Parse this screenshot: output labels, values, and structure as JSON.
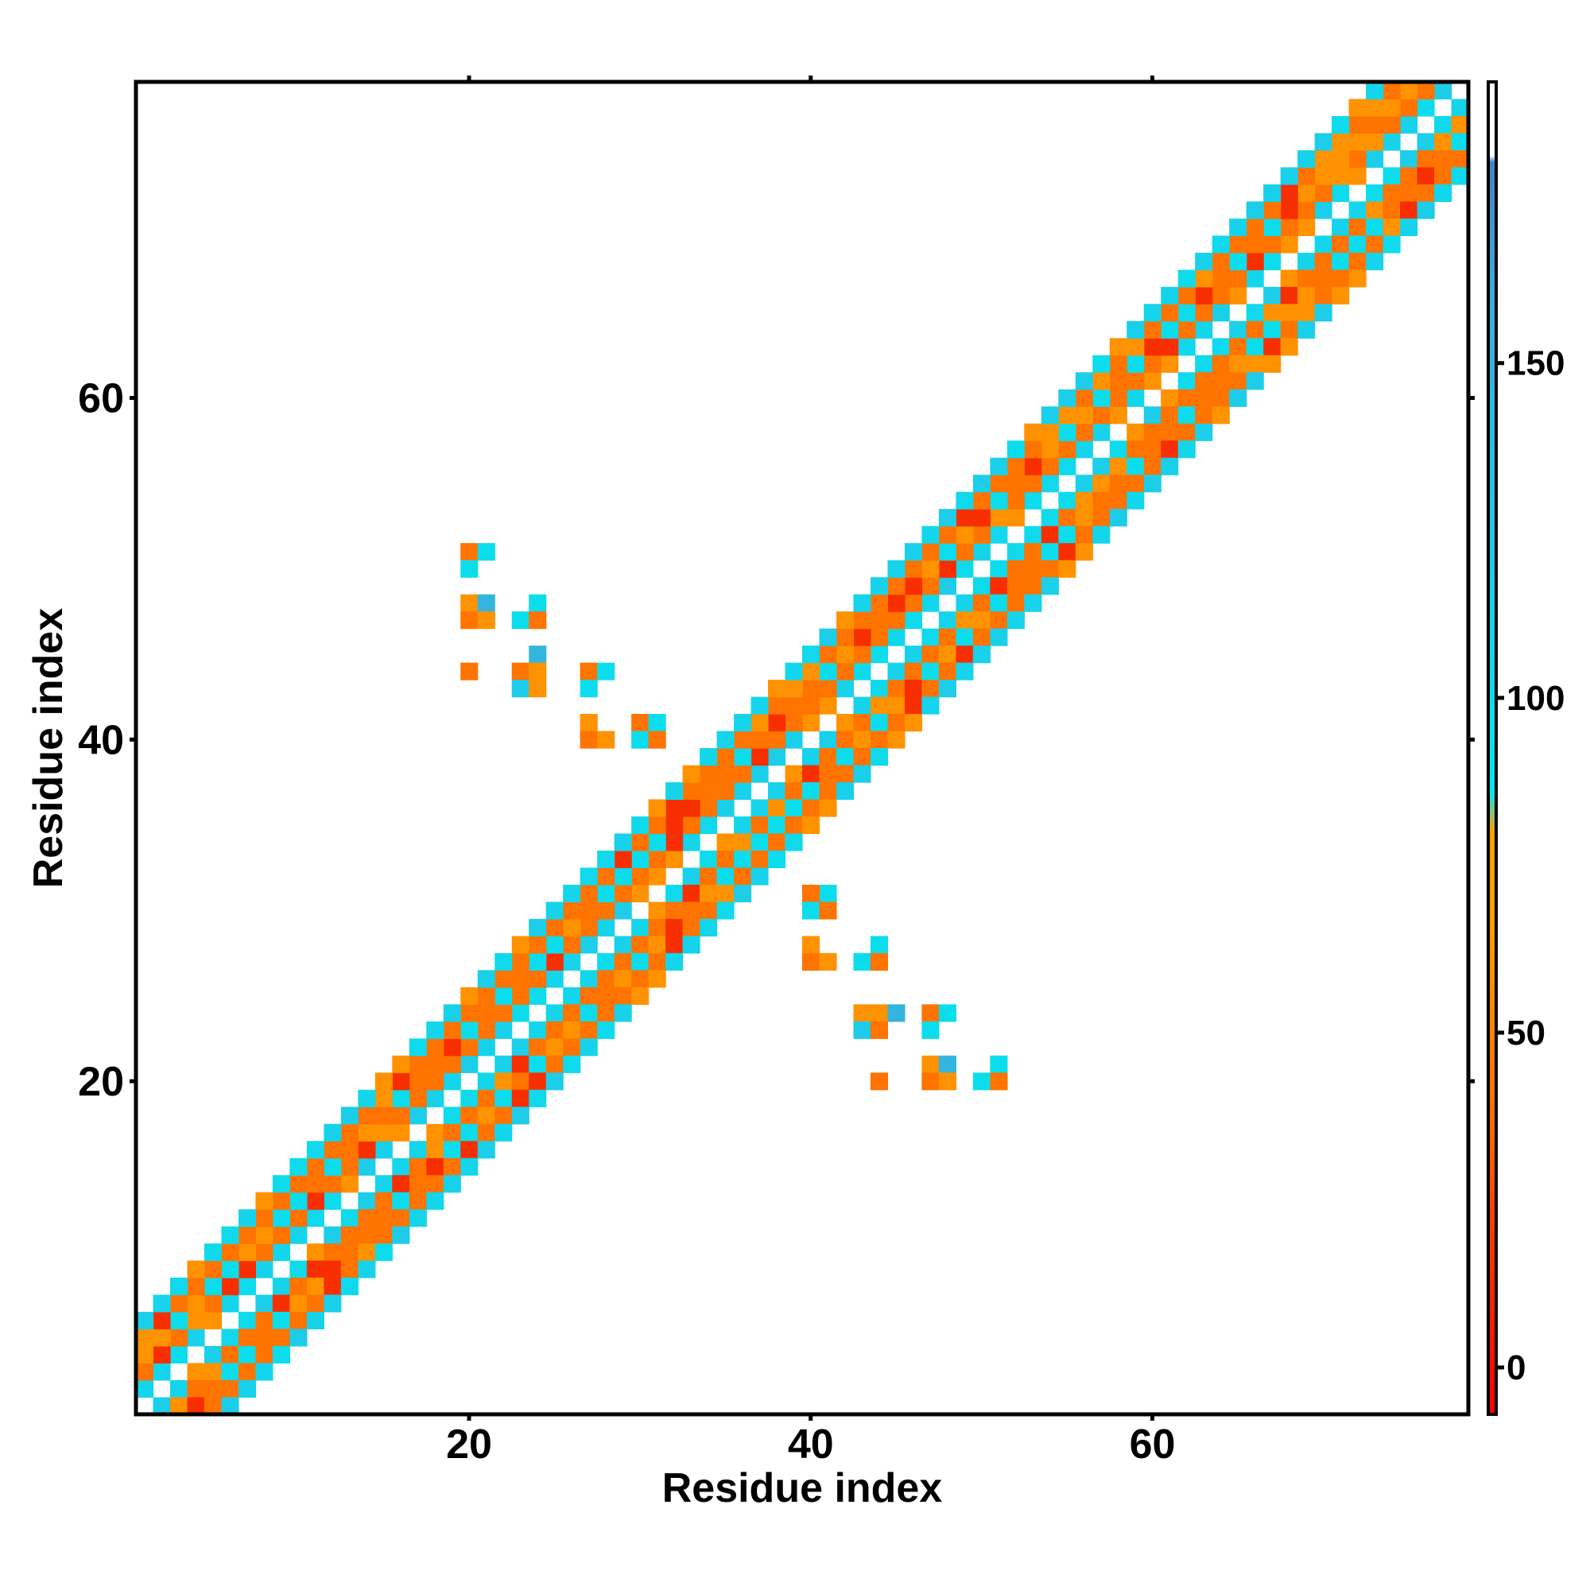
{
  "chart_data": {
    "type": "heatmap",
    "title": "",
    "xlabel": "Residue index",
    "ylabel": "Residue index",
    "xlim": [
      0.5,
      78.5
    ],
    "ylim": [
      0.5,
      78.5
    ],
    "x_ticks": [
      20,
      40,
      60
    ],
    "y_ticks": [
      20,
      40,
      60
    ],
    "colorbar": {
      "ticks": [
        0,
        50,
        100,
        150
      ],
      "range": [
        -7,
        192
      ],
      "stops": [
        {
          "value": -7,
          "color": "#ff0000"
        },
        {
          "value": 20,
          "color": "#f53a00"
        },
        {
          "value": 40,
          "color": "#ff7300"
        },
        {
          "value": 70,
          "color": "#ffa200"
        },
        {
          "value": 80,
          "color": "#ffa200"
        },
        {
          "value": 86,
          "color": "#00e8f0"
        },
        {
          "value": 125,
          "color": "#22c8e8"
        },
        {
          "value": 160,
          "color": "#3aaedb"
        },
        {
          "value": 180,
          "color": "#4682c8"
        },
        {
          "value": 181,
          "color": "#ffffff"
        },
        {
          "value": 192,
          "color": "#ffffff"
        }
      ]
    },
    "band_diagonals": [
      {
        "offset": 1,
        "band": "cyan"
      },
      {
        "offset": 2,
        "band": "orange"
      },
      {
        "offset": 3,
        "band": "mixed"
      },
      {
        "offset": 4,
        "band": "orange"
      },
      {
        "offset": 5,
        "band": "cyan"
      }
    ],
    "cross_contacts": [
      {
        "x": 20,
        "y": 51,
        "value": 40
      },
      {
        "x": 21,
        "y": 51,
        "value": 100
      },
      {
        "x": 20,
        "y": 50,
        "value": 100
      },
      {
        "x": 20,
        "y": 48,
        "value": 60
      },
      {
        "x": 21,
        "y": 48,
        "value": 150
      },
      {
        "x": 24,
        "y": 48,
        "value": 100
      },
      {
        "x": 20,
        "y": 47,
        "value": 40
      },
      {
        "x": 21,
        "y": 47,
        "value": 60
      },
      {
        "x": 23,
        "y": 47,
        "value": 100
      },
      {
        "x": 24,
        "y": 47,
        "value": 40
      },
      {
        "x": 24,
        "y": 45,
        "value": 150
      },
      {
        "x": 20,
        "y": 44,
        "value": 40
      },
      {
        "x": 23,
        "y": 44,
        "value": 40
      },
      {
        "x": 24,
        "y": 44,
        "value": 60
      },
      {
        "x": 27,
        "y": 44,
        "value": 40
      },
      {
        "x": 28,
        "y": 44,
        "value": 100
      },
      {
        "x": 23,
        "y": 43,
        "value": 120
      },
      {
        "x": 24,
        "y": 43,
        "value": 60
      },
      {
        "x": 27,
        "y": 43,
        "value": 100
      },
      {
        "x": 27,
        "y": 41,
        "value": 60
      },
      {
        "x": 30,
        "y": 41,
        "value": 40
      },
      {
        "x": 31,
        "y": 41,
        "value": 100
      },
      {
        "x": 27,
        "y": 40,
        "value": 40
      },
      {
        "x": 28,
        "y": 40,
        "value": 60
      },
      {
        "x": 30,
        "y": 40,
        "value": 100
      },
      {
        "x": 31,
        "y": 40,
        "value": 40
      },
      {
        "x": 41,
        "y": 31,
        "value": 100
      },
      {
        "x": 40,
        "y": 31,
        "value": 40
      },
      {
        "x": 40,
        "y": 30,
        "value": 100
      },
      {
        "x": 41,
        "y": 30,
        "value": 40
      },
      {
        "x": 40,
        "y": 28,
        "value": 60
      },
      {
        "x": 44,
        "y": 28,
        "value": 100
      },
      {
        "x": 40,
        "y": 27,
        "value": 40
      },
      {
        "x": 41,
        "y": 27,
        "value": 60
      },
      {
        "x": 43,
        "y": 27,
        "value": 100
      },
      {
        "x": 44,
        "y": 27,
        "value": 40
      },
      {
        "x": 43,
        "y": 24,
        "value": 60
      },
      {
        "x": 44,
        "y": 24,
        "value": 60
      },
      {
        "x": 45,
        "y": 24,
        "value": 150
      },
      {
        "x": 47,
        "y": 24,
        "value": 40
      },
      {
        "x": 48,
        "y": 24,
        "value": 100
      },
      {
        "x": 43,
        "y": 23,
        "value": 120
      },
      {
        "x": 44,
        "y": 23,
        "value": 40
      },
      {
        "x": 47,
        "y": 23,
        "value": 100
      },
      {
        "x": 47,
        "y": 21,
        "value": 60
      },
      {
        "x": 48,
        "y": 21,
        "value": 150
      },
      {
        "x": 51,
        "y": 21,
        "value": 100
      },
      {
        "x": 44,
        "y": 20,
        "value": 40
      },
      {
        "x": 47,
        "y": 20,
        "value": 40
      },
      {
        "x": 48,
        "y": 20,
        "value": 60
      },
      {
        "x": 50,
        "y": 20,
        "value": 100
      },
      {
        "x": 51,
        "y": 20,
        "value": 40
      }
    ]
  }
}
